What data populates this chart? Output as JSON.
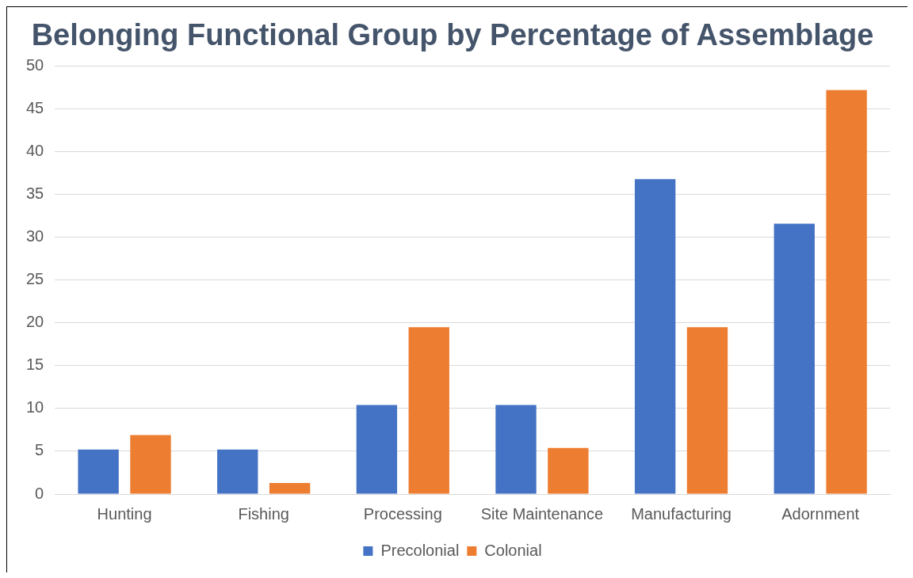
{
  "chart_data": {
    "type": "bar",
    "title": "Belonging Functional Group by Percentage of Assemblage",
    "categories": [
      "Hunting",
      "Fishing",
      "Processing",
      "Site Maintenance",
      "Manufacturing",
      "Adornment"
    ],
    "series": [
      {
        "name": "Precolonial",
        "color": "#4472c4",
        "values": [
          5.2,
          5.2,
          10.4,
          10.4,
          36.8,
          31.6
        ]
      },
      {
        "name": "Colonial",
        "color": "#ed7d31",
        "values": [
          6.9,
          1.3,
          19.5,
          5.4,
          19.5,
          47.2
        ]
      }
    ],
    "ylim": [
      0,
      50
    ],
    "yticks": [
      0,
      5,
      10,
      15,
      20,
      25,
      30,
      35,
      40,
      45,
      50
    ],
    "grid": "y",
    "legend": "bottom"
  }
}
